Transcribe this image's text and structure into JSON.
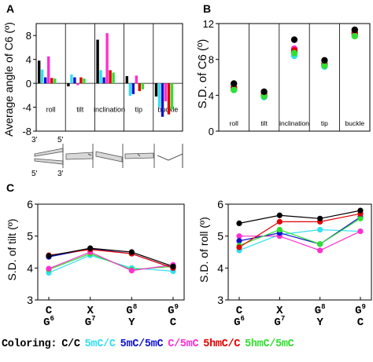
{
  "panel_labels": {
    "a": "A",
    "b": "B",
    "c": "C"
  },
  "colors": {
    "C/C": "#000000",
    "5mC/C": "#33e0f0",
    "5mC/5mC": "#1010d0",
    "C/5mC": "#ff2fd0",
    "5hmC/C": "#e00000",
    "5hmC/5mC": "#30e030"
  },
  "legend": {
    "prefix": "Coloring:",
    "items": [
      {
        "label": "C/C",
        "key": "C/C"
      },
      {
        "label": "5mC/C",
        "key": "5mC/C"
      },
      {
        "label": "5mC/5mC",
        "key": "5mC/5mC"
      },
      {
        "label": "C/5mC",
        "key": "C/5mC"
      },
      {
        "label": "5hmC/C",
        "key": "5hmC/C"
      },
      {
        "label": "5hmC/5mC",
        "key": "5hmC/5mC"
      }
    ]
  },
  "strand_labels": {
    "top_left": "3'",
    "top_right": "5'",
    "bottom_left": "5'",
    "bottom_right": "3'"
  },
  "chart_data": [
    {
      "id": "A",
      "type": "bar",
      "ylabel": "Average angle of C6 (º)",
      "ylim": [
        -8,
        10
      ],
      "yticks": [
        -8,
        -4,
        0,
        4,
        8
      ],
      "categories": [
        "roll",
        "tilt",
        "inclination",
        "tip",
        "buckle"
      ],
      "series": [
        {
          "key": "C/C",
          "values": [
            3.8,
            -0.5,
            7.3,
            1.2,
            -2.2
          ]
        },
        {
          "key": "5mC/C",
          "values": [
            2.3,
            1.5,
            2.2,
            -2.1,
            -4.0
          ]
        },
        {
          "key": "5mC/5mC",
          "values": [
            1.0,
            1.0,
            1.0,
            -1.8,
            -5.6
          ]
        },
        {
          "key": "C/5mC",
          "values": [
            4.5,
            -0.3,
            8.4,
            1.3,
            -3.0
          ]
        },
        {
          "key": "5hmC/C",
          "values": [
            0.9,
            1.0,
            2.2,
            -1.3,
            -5.2
          ]
        },
        {
          "key": "5hmC/5mC",
          "values": [
            0.8,
            0.8,
            1.8,
            -1.0,
            -4.4
          ]
        }
      ]
    },
    {
      "id": "B",
      "type": "scatter",
      "ylabel": "S.D. of C6 (º)",
      "ylim": [
        0,
        12
      ],
      "yticks": [
        0,
        4,
        8,
        12
      ],
      "categories": [
        "roll",
        "tilt",
        "inclination",
        "tip",
        "buckle"
      ],
      "series": [
        {
          "key": "5mC/C",
          "values": [
            4.6,
            3.8,
            8.4,
            7.2,
            10.7
          ]
        },
        {
          "key": "5mC/5mC",
          "values": [
            4.8,
            3.9,
            8.8,
            7.4,
            10.9
          ]
        },
        {
          "key": "C/5mC",
          "values": [
            4.7,
            4.0,
            9.2,
            7.3,
            10.8
          ]
        },
        {
          "key": "5hmC/C",
          "values": [
            4.9,
            4.1,
            9.0,
            7.5,
            11.0
          ]
        },
        {
          "key": "5hmC/5mC",
          "values": [
            4.6,
            3.9,
            8.7,
            7.3,
            10.6
          ]
        },
        {
          "key": "C/C",
          "values": [
            5.3,
            4.4,
            10.2,
            7.9,
            11.3
          ]
        }
      ]
    },
    {
      "id": "C-tilt",
      "type": "line",
      "ylabel": "S.D. of tilt (º)",
      "ylim": [
        3,
        6
      ],
      "yticks": [
        3,
        4,
        5,
        6
      ],
      "categories": [
        {
          "top": "C",
          "bottom": "G",
          "bottom_sup": "6"
        },
        {
          "top": "X",
          "bottom": "G",
          "bottom_sup": "7"
        },
        {
          "top": "G",
          "top_sup": "8",
          "bottom": "Y"
        },
        {
          "top": "G",
          "top_sup": "9",
          "bottom": "C"
        }
      ],
      "series": [
        {
          "key": "5mC/C",
          "values": [
            3.85,
            4.4,
            4.0,
            3.9
          ]
        },
        {
          "key": "5hmC/5mC",
          "values": [
            3.95,
            4.45,
            3.95,
            4.05
          ]
        },
        {
          "key": "C/5mC",
          "values": [
            3.98,
            4.5,
            3.92,
            4.1
          ]
        },
        {
          "key": "5mC/5mC",
          "values": [
            4.35,
            4.6,
            4.45,
            4.0
          ]
        },
        {
          "key": "5hmC/C",
          "values": [
            4.4,
            4.58,
            4.45,
            4.0
          ]
        },
        {
          "key": "C/C",
          "values": [
            4.38,
            4.62,
            4.5,
            4.05
          ]
        }
      ]
    },
    {
      "id": "C-roll",
      "type": "line",
      "ylabel": "S.D. of roll (º)",
      "ylim": [
        3,
        6
      ],
      "yticks": [
        3,
        4,
        5,
        6
      ],
      "categories": [
        {
          "top": "C",
          "bottom": "G",
          "bottom_sup": "6"
        },
        {
          "top": "X",
          "bottom": "G",
          "bottom_sup": "7"
        },
        {
          "top": "G",
          "top_sup": "8",
          "bottom": "Y"
        },
        {
          "top": "G",
          "top_sup": "9",
          "bottom": "C"
        }
      ],
      "series": [
        {
          "key": "5mC/C",
          "values": [
            4.55,
            5.05,
            5.2,
            5.15
          ]
        },
        {
          "key": "C/5mC",
          "values": [
            5.0,
            5.0,
            4.55,
            5.15
          ]
        },
        {
          "key": "5mC/5mC",
          "values": [
            4.85,
            5.1,
            4.75,
            5.6
          ]
        },
        {
          "key": "5hmC/5mC",
          "values": [
            4.7,
            5.2,
            4.75,
            5.55
          ]
        },
        {
          "key": "5hmC/C",
          "values": [
            4.65,
            5.45,
            5.45,
            5.7
          ]
        },
        {
          "key": "C/C",
          "values": [
            5.4,
            5.65,
            5.55,
            5.8
          ]
        }
      ]
    }
  ]
}
